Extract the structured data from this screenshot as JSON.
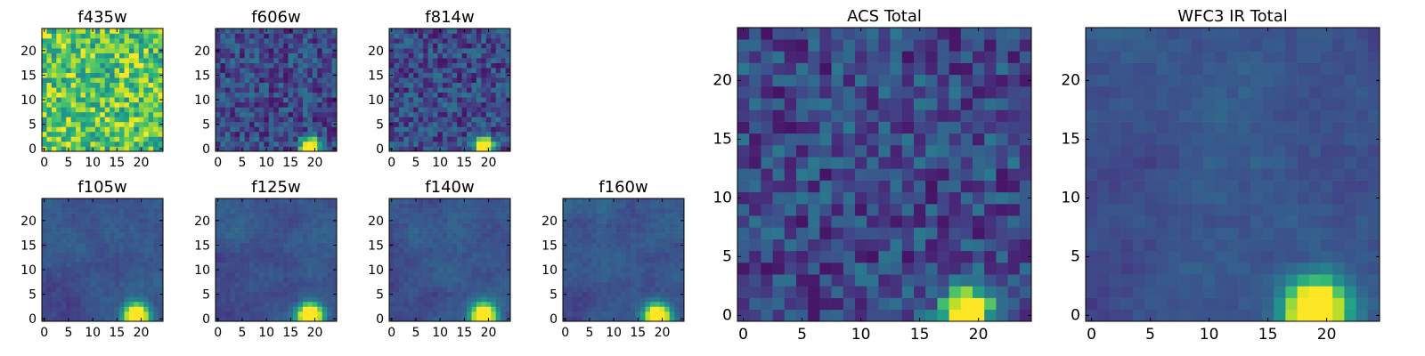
{
  "chart_data": [
    {
      "type": "heatmap",
      "title": "f435w",
      "xticks": [
        "0",
        "5",
        "10",
        "15",
        "20"
      ],
      "yticks": [
        "0",
        "5",
        "10",
        "15",
        "20"
      ],
      "grid_size": [
        25,
        25
      ],
      "colormap": "viridis",
      "pattern": "noisy-high"
    },
    {
      "type": "heatmap",
      "title": "f606w",
      "xticks": [
        "0",
        "5",
        "10",
        "15",
        "20"
      ],
      "yticks": [
        "0",
        "5",
        "10",
        "15",
        "20"
      ],
      "grid_size": [
        25,
        25
      ],
      "colormap": "viridis",
      "pattern": "noise-with-source"
    },
    {
      "type": "heatmap",
      "title": "f814w",
      "xticks": [
        "0",
        "5",
        "10",
        "15",
        "20"
      ],
      "yticks": [
        "0",
        "5",
        "10",
        "15",
        "20"
      ],
      "grid_size": [
        25,
        25
      ],
      "colormap": "viridis",
      "pattern": "noise-with-source"
    },
    {
      "type": "heatmap",
      "title": "f105w",
      "xticks": [
        "0",
        "5",
        "10",
        "15",
        "20"
      ],
      "yticks": [
        "0",
        "5",
        "10",
        "15",
        "20"
      ],
      "grid_size": [
        25,
        25
      ],
      "colormap": "viridis",
      "pattern": "smooth-with-source"
    },
    {
      "type": "heatmap",
      "title": "f125w",
      "xticks": [
        "0",
        "5",
        "10",
        "15",
        "20"
      ],
      "yticks": [
        "0",
        "5",
        "10",
        "15",
        "20"
      ],
      "grid_size": [
        25,
        25
      ],
      "colormap": "viridis",
      "pattern": "smooth-with-source"
    },
    {
      "type": "heatmap",
      "title": "f140w",
      "xticks": [
        "0",
        "5",
        "10",
        "15",
        "20"
      ],
      "yticks": [
        "0",
        "5",
        "10",
        "15",
        "20"
      ],
      "grid_size": [
        25,
        25
      ],
      "colormap": "viridis",
      "pattern": "smooth-with-source"
    },
    {
      "type": "heatmap",
      "title": "f160w",
      "xticks": [
        "0",
        "5",
        "10",
        "15",
        "20"
      ],
      "yticks": [
        "0",
        "5",
        "10",
        "15",
        "20"
      ],
      "grid_size": [
        25,
        25
      ],
      "colormap": "viridis",
      "pattern": "smooth-with-source"
    },
    {
      "type": "heatmap",
      "title": "ACS Total",
      "xticks": [
        "0",
        "5",
        "10",
        "15",
        "20"
      ],
      "yticks": [
        "0",
        "5",
        "10",
        "15",
        "20"
      ],
      "grid_size": [
        25,
        25
      ],
      "colormap": "viridis",
      "pattern": "noise-with-source"
    },
    {
      "type": "heatmap",
      "title": "WFC3 IR Total",
      "xticks": [
        "0",
        "5",
        "10",
        "15",
        "20"
      ],
      "yticks": [
        "0",
        "5",
        "10",
        "15",
        "20"
      ],
      "grid_size": [
        25,
        25
      ],
      "colormap": "viridis",
      "pattern": "smooth-with-source"
    }
  ]
}
